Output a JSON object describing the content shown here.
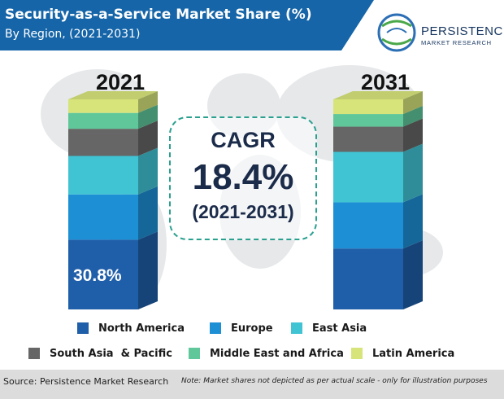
{
  "header": {
    "title": "Security-as-a-Service Market Share (%)",
    "subtitle": "By Region, (2021-2031)"
  },
  "logo": {
    "line1": "PERSISTENCE",
    "line2": "MARKET RESEARCH",
    "icon": "globe-swirl-icon"
  },
  "cagr": {
    "label": "CAGR",
    "value": "18.4%",
    "period": "(2021-2031)"
  },
  "footer": {
    "source": "Source: Persistence Market Research",
    "note": "Note: Market shares not depicted as per actual scale - only for illustration purposes"
  },
  "colors": {
    "header_bg": "#1565a8",
    "north_america": "#1f5ea8",
    "europe": "#1d8fd4",
    "east_asia": "#40c4d4",
    "south_asia_pacific": "#666666",
    "middle_east_africa": "#5fc79a",
    "latin_america": "#d6e47a"
  },
  "chart_data": {
    "type": "bar",
    "stacked": true,
    "categories": [
      "2021",
      "2031"
    ],
    "series": [
      {
        "name": "North America",
        "values": [
          30.8,
          29.0
        ],
        "color": "#1f5ea8"
      },
      {
        "name": "Europe",
        "values": [
          20.0,
          22.0
        ],
        "color": "#1d8fd4"
      },
      {
        "name": "East Asia",
        "values": [
          17.0,
          24.0
        ],
        "color": "#40c4d4"
      },
      {
        "name": "South Asia  & Pacific",
        "values": [
          12.0,
          12.0
        ],
        "color": "#666666"
      },
      {
        "name": "Middle East and Africa",
        "values": [
          7.0,
          6.0
        ],
        "color": "#5fc79a"
      },
      {
        "name": "Latin America",
        "values": [
          6.0,
          7.0
        ],
        "color": "#d6e47a"
      }
    ],
    "data_labels": [
      {
        "category": "2021",
        "series": "North America",
        "text": "30.8%"
      }
    ],
    "legend": "bottom"
  }
}
